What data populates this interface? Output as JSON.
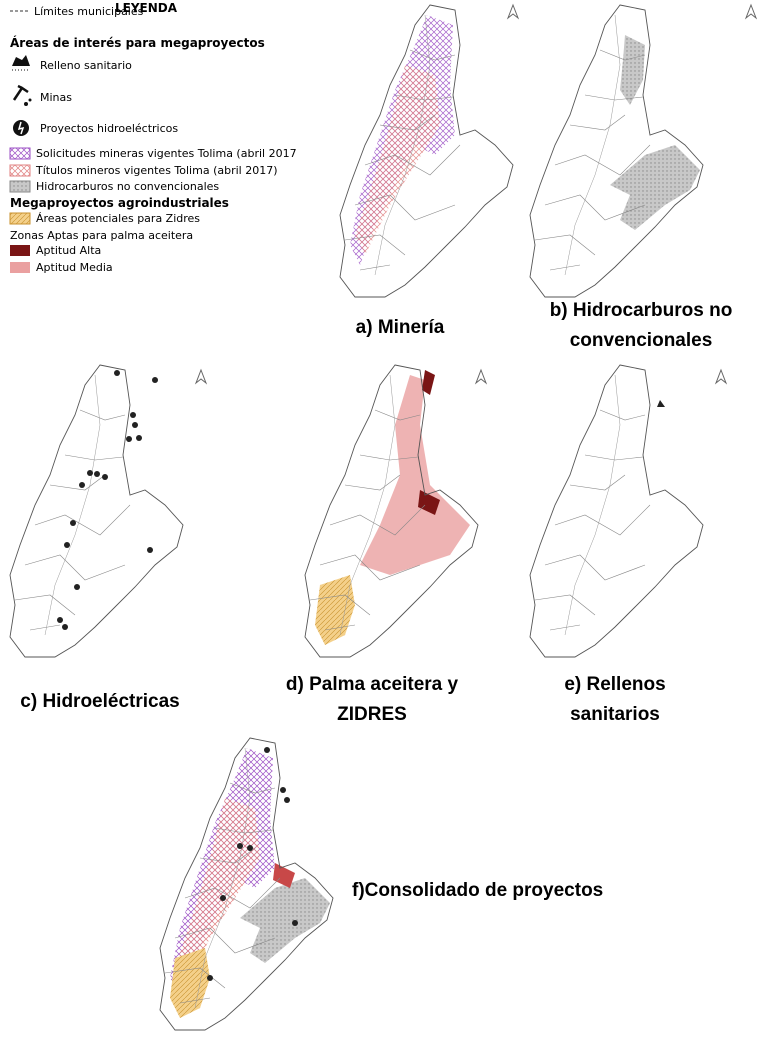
{
  "legend": {
    "title": "LEYENDA",
    "boundaries": "Límites municipales",
    "interest_heading": "Áreas de interés para megaproyectos",
    "landfill": "Relleno sanitario",
    "mines": "Minas",
    "hydro": "Proyectos hidroeléctricos",
    "mining_requests": "Solicitudes mineras vigentes Tolima (abril 2017",
    "mining_titles": "Títulos mineros vigentes Tolima (abril 2017)",
    "hydrocarbons": "Hidrocarburos no convencionales",
    "agro_heading": "Megaproyectos agroindustriales",
    "zidres": "Áreas potenciales para Zidres",
    "palm_heading": "Zonas Aptas para palma aceitera",
    "high": "Aptitud Alta",
    "medium": "Aptitud Media"
  },
  "captions": [
    [
      "a)  Minería"
    ],
    [
      "b)  Hidrocarburos no",
      "convencionales"
    ],
    [
      "c)  Hidroeléctricas"
    ],
    [
      "d)  Palma aceitera y",
      "ZIDRES"
    ],
    [
      "e)  Rellenos",
      "sanitarios"
    ],
    [
      "f)Consolidado de proyectos"
    ]
  ]
}
